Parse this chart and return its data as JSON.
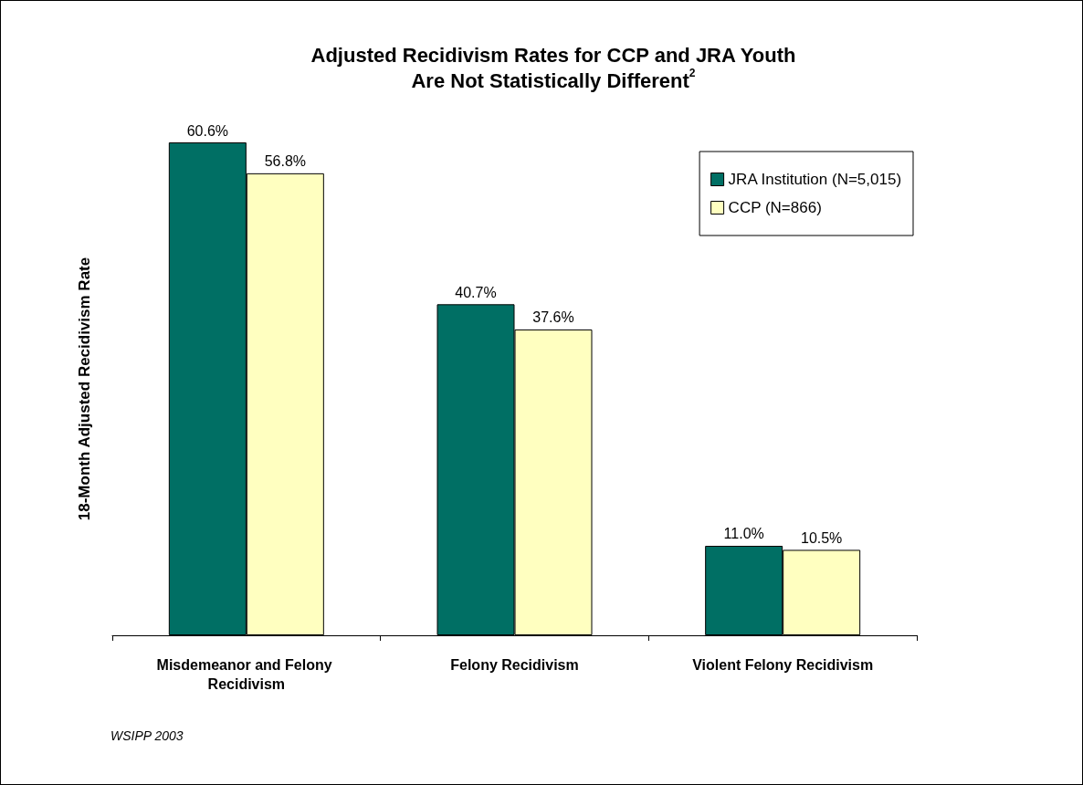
{
  "chart_data": {
    "type": "bar",
    "title": "Adjusted Recidivism Rates for CCP and JRA Youth\nAre Not Statistically Different$^{2}$",
    "ylabel": "18-Month Adjusted Recidivism Rate",
    "categories": [
      "Misdemeanor and Felony Recidivism",
      "Felony Recidivism",
      "Violent Felony Recidivism"
    ],
    "series": [
      {
        "name": "JRA Institution (N=5,015)",
        "color": "#006f64",
        "values": [
          60.6,
          40.7,
          11.0
        ],
        "value_labels": [
          "60.6%",
          "40.7%",
          "11.0%"
        ]
      },
      {
        "name": "CCP (N=866)",
        "color": "#ffffc0",
        "values": [
          56.8,
          37.6,
          10.5
        ],
        "value_labels": [
          "56.8%",
          "37.6%",
          "10.5%"
        ]
      }
    ],
    "legend": "top right",
    "annotations": [
      "WSIPP 2003"
    ]
  }
}
